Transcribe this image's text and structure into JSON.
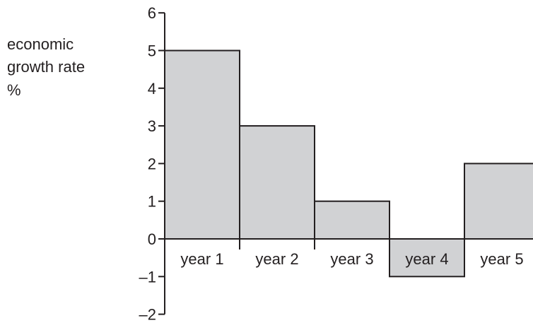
{
  "chart_data": {
    "type": "bar",
    "ylabel_lines": [
      "economic",
      "growth rate",
      "%"
    ],
    "categories": [
      "year 1",
      "year 2",
      "year 3",
      "year 4",
      "year 5"
    ],
    "values": [
      5,
      3,
      1,
      -1,
      2
    ],
    "ylim": [
      -2,
      6
    ],
    "yticks": [
      {
        "value": 6,
        "label": "6"
      },
      {
        "value": 5,
        "label": "5"
      },
      {
        "value": 4,
        "label": "4"
      },
      {
        "value": 3,
        "label": "3"
      },
      {
        "value": 2,
        "label": "2"
      },
      {
        "value": 1,
        "label": "1"
      },
      {
        "value": 0,
        "label": "0"
      },
      {
        "value": -1,
        "label": "–1"
      },
      {
        "value": -2,
        "label": "–2"
      }
    ],
    "grid": false,
    "legend": "none",
    "colors": {
      "bar_fill": "#d1d2d4",
      "bar_stroke": "#231f20",
      "axis": "#231f20",
      "text": "#231f20"
    }
  }
}
